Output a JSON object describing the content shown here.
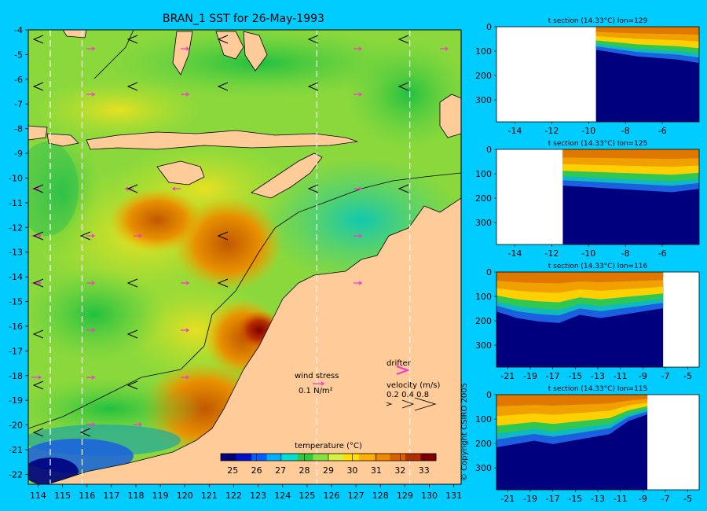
{
  "map": {
    "title": "BRAN_1 SST for 26-May-1993",
    "lon_ticks": [
      114,
      115,
      116,
      117,
      118,
      119,
      120,
      121,
      122,
      123,
      124,
      125,
      126,
      127,
      128,
      129,
      130,
      131
    ],
    "lat_ticks": [
      -4,
      -5,
      -6,
      -7,
      -8,
      -9,
      -10,
      -11,
      -12,
      -13,
      -14,
      -15,
      -16,
      -17,
      -18,
      -19,
      -20,
      -21,
      -22
    ],
    "lon_range": [
      113.6,
      131.3
    ],
    "lat_range": [
      -22.4,
      -4.0
    ],
    "section_lons": [
      114.5,
      115.8,
      125.4,
      129.2
    ]
  },
  "legend": {
    "wind_label": "wind stress",
    "wind_unit": "0.1 N/m²",
    "drifter_label": "drifter",
    "velocity_label": "velocity (m/s)",
    "velocity_values": "0.2 0.4 0.8"
  },
  "colorbar": {
    "title": "temperature (°C)",
    "ticks": [
      "25",
      "26",
      "27",
      "28",
      "29",
      "30",
      "31",
      "32",
      "33"
    ],
    "colors": [
      "#00007f",
      "#0010c8",
      "#0060ff",
      "#00b0ff",
      "#00e0d0",
      "#30c840",
      "#88e040",
      "#d8f040",
      "#ffe000",
      "#ffb000",
      "#f08800",
      "#d86000",
      "#b03000",
      "#800000"
    ]
  },
  "chart_data": [
    {
      "type": "heatmap",
      "title": "BRAN_1 SST for 26-May-1993",
      "colorbar_label": "temperature (°C)",
      "colorbar_range": [
        24.5,
        33.5
      ],
      "x_range": [
        113.6,
        131.3
      ],
      "y_range": [
        -22.4,
        -4.0
      ],
      "grid": false
    },
    {
      "type": "heatmap",
      "title": "t section (14.33°C) lon=129",
      "x_ticks": [
        "-14",
        "-12",
        "-10",
        "-8",
        "-6"
      ],
      "y_ticks": [
        "0",
        "100",
        "200",
        "300"
      ],
      "x_range": [
        -15.0,
        -4.0
      ],
      "y_range": [
        0,
        390
      ],
      "thermocline_depth_m": [
        70,
        80,
        90,
        95,
        100,
        110
      ],
      "land_x_end": -9.6
    },
    {
      "type": "heatmap",
      "title": "t section (14.33°C) lon=125",
      "x_ticks": [
        "-14",
        "-12",
        "-10",
        "-8",
        "-6"
      ],
      "y_ticks": [
        "0",
        "100",
        "200",
        "300"
      ],
      "x_range": [
        -15.0,
        -4.0
      ],
      "y_range": [
        0,
        390
      ],
      "thermocline_depth_m": [
        110,
        115,
        120,
        125,
        130,
        120
      ],
      "land_x_end": -11.4
    },
    {
      "type": "heatmap",
      "title": "t section (14.33°C) lon=116",
      "x_ticks": [
        "-21",
        "-19",
        "-17",
        "-15",
        "-13",
        "-11",
        "-9",
        "-7",
        "-5"
      ],
      "y_ticks": [
        "0",
        "100",
        "200",
        "300"
      ],
      "x_range": [
        -22.0,
        -4.0
      ],
      "y_range": [
        0,
        390
      ],
      "thermocline_depth_m": [
        120,
        140,
        150,
        155,
        130,
        140,
        130,
        120,
        110
      ],
      "land_x_start": -7.2
    },
    {
      "type": "heatmap",
      "title": "t section (14.33°C) lon=115",
      "x_ticks": [
        "-21",
        "-19",
        "-17",
        "-15",
        "-13",
        "-11",
        "-9",
        "-7",
        "-5"
      ],
      "y_ticks": [
        "0",
        "100",
        "200",
        "300"
      ],
      "x_range": [
        -22.0,
        -4.0
      ],
      "y_range": [
        0,
        390
      ],
      "thermocline_depth_m": [
        160,
        150,
        140,
        150,
        140,
        130,
        120,
        80,
        60
      ],
      "land_x_start": -8.6
    }
  ],
  "sections": [
    {
      "title": "t section (14.33°C) lon=129"
    },
    {
      "title": "t section (14.33°C) lon=125"
    },
    {
      "title": "t section (14.33°C) lon=116"
    },
    {
      "title": "t section (14.33°C) lon=115"
    }
  ],
  "copyright": "© Copyright CSIRO 2005"
}
